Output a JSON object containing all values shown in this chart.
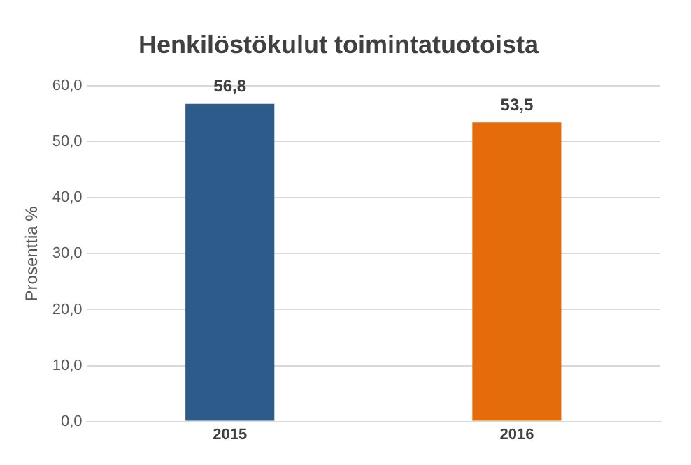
{
  "chart_data": {
    "type": "bar",
    "title": "Henkilöstökulut toimintatuotoista",
    "ylabel": "Prosenttia %",
    "categories": [
      "2015",
      "2016"
    ],
    "values": [
      56.8,
      53.5
    ],
    "colors": [
      "#2e5c8a",
      "#e46c0a"
    ],
    "value_labels": [
      "56,8",
      "53,5"
    ],
    "ylim": [
      0,
      60
    ],
    "yticks": [
      {
        "value": 0,
        "label": "0,0"
      },
      {
        "value": 10,
        "label": "10,0"
      },
      {
        "value": 20,
        "label": "20,0"
      },
      {
        "value": 30,
        "label": "30,0"
      },
      {
        "value": 40,
        "label": "40,0"
      },
      {
        "value": 50,
        "label": "50,0"
      },
      {
        "value": 60,
        "label": "60,0"
      }
    ],
    "grid": "y",
    "legend": false
  }
}
